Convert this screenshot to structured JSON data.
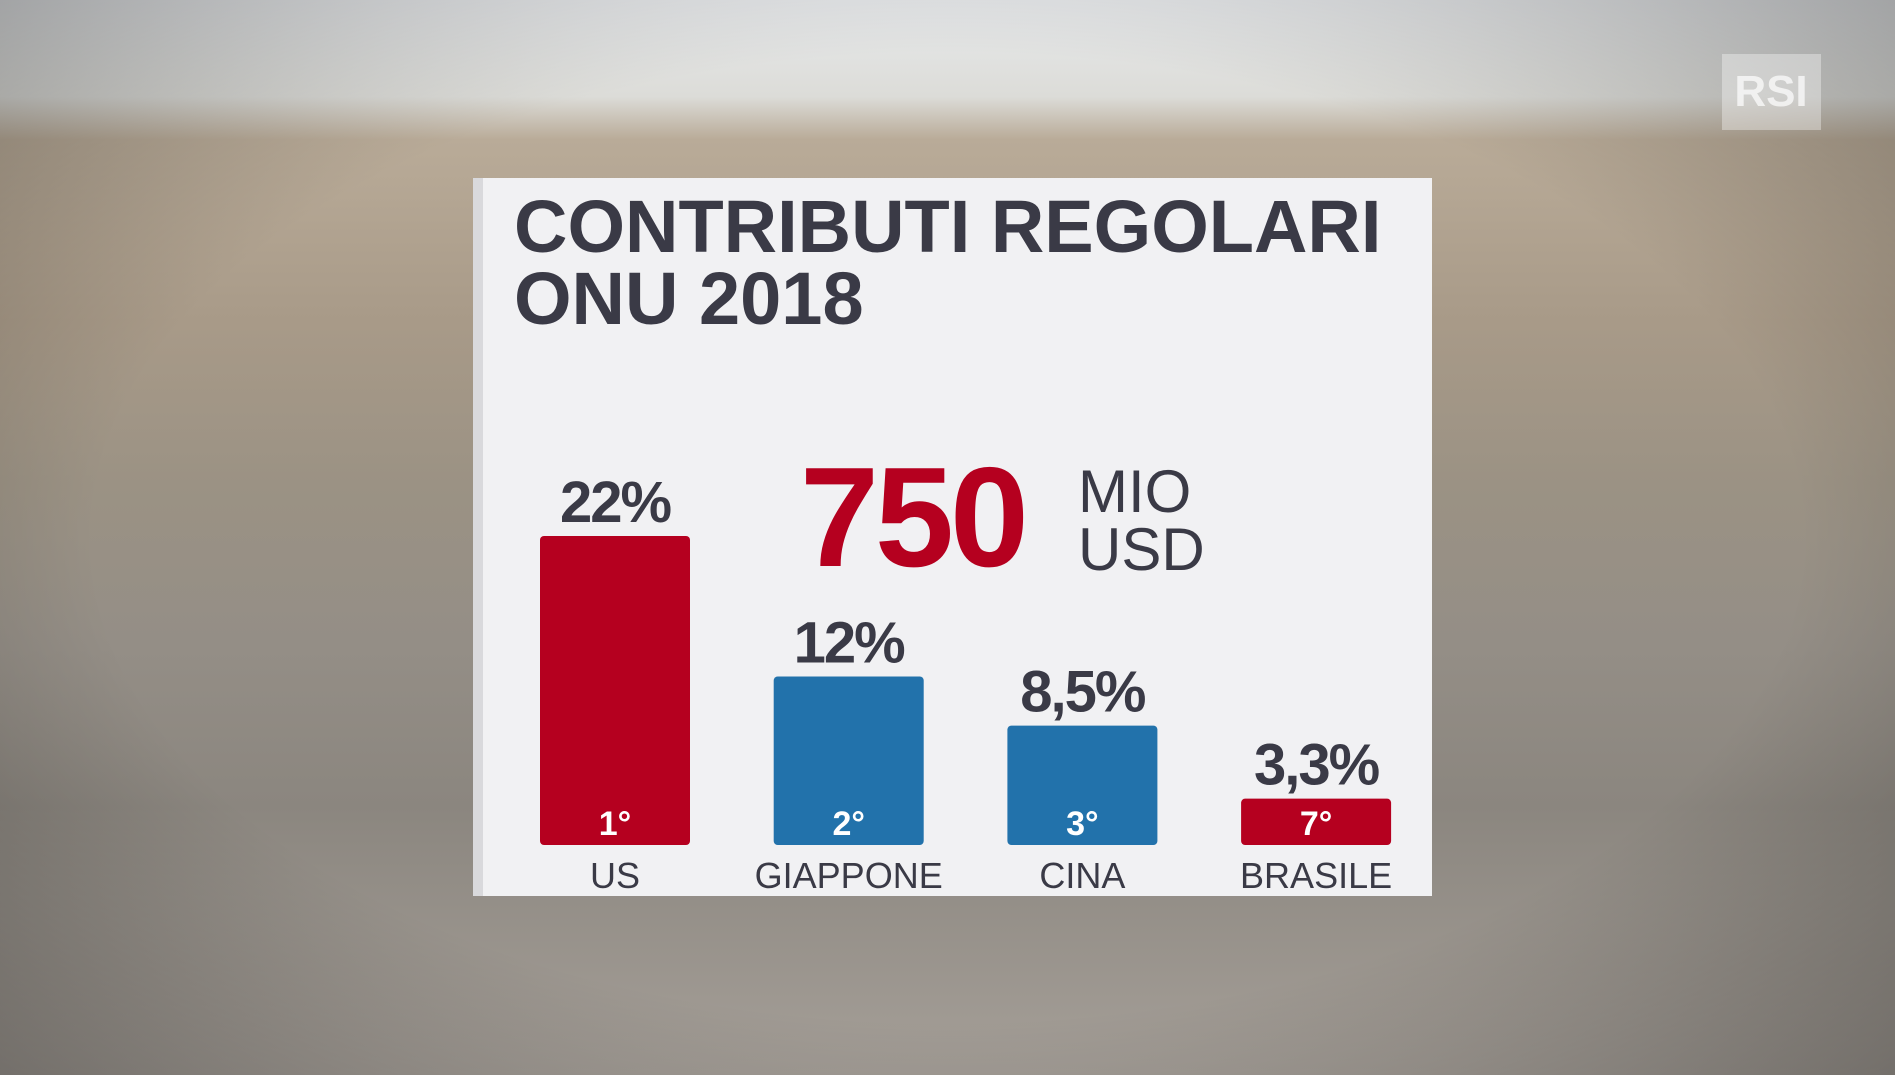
{
  "chart_data": {
    "type": "bar",
    "title": [
      "CONTRIBUTI REGOLARI",
      "ONU 2018"
    ],
    "categories": [
      "US",
      "GIAPPONE",
      "CINA",
      "BRASILE"
    ],
    "values": [
      22,
      12,
      8.5,
      3.3
    ],
    "value_labels": [
      "22%",
      "12%",
      "8,5%",
      "3,3%"
    ],
    "rank_labels": [
      "1°",
      "2°",
      "3°",
      "7°"
    ],
    "colors": [
      "#b5001f",
      "#2272ab",
      "#2272ab",
      "#b5001f"
    ],
    "annotation": {
      "value": 750,
      "unit": [
        "MIO",
        "USD"
      ]
    }
  },
  "logo": "RSI"
}
